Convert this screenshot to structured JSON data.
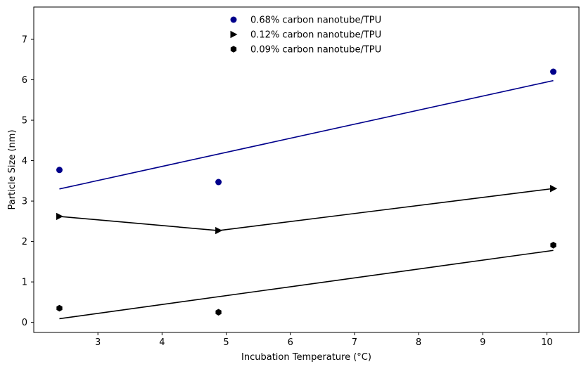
{
  "chart_data": {
    "type": "scatter",
    "title": "",
    "xlabel": "Incubation Temperature (°C)",
    "ylabel": "Particle Size (nm)",
    "xlim": [
      2.0,
      10.5
    ],
    "ylim": [
      -0.25,
      7.8
    ],
    "xticks": [
      3,
      4,
      5,
      6,
      7,
      8,
      9,
      10
    ],
    "yticks": [
      0,
      1,
      2,
      3,
      4,
      5,
      6,
      7
    ],
    "grid": false,
    "legend_position": "top-center",
    "series": [
      {
        "name": "0.68% carbon nanotube/TPU",
        "marker": "circle",
        "color": "#00008b",
        "x": [
          2.4,
          4.88,
          10.1
        ],
        "y": [
          3.77,
          3.47,
          6.2
        ],
        "fit_line": {
          "x": [
            2.4,
            10.1
          ],
          "y": [
            3.3,
            5.98
          ]
        }
      },
      {
        "name": "0.12% carbon nanotube/TPU",
        "marker": "triangle-right",
        "color": "#000000",
        "x": [
          2.4,
          4.88,
          10.1
        ],
        "y": [
          2.62,
          2.27,
          3.31
        ],
        "fit_line": {
          "x": [
            2.4,
            4.88,
            10.1
          ],
          "y": [
            2.62,
            2.27,
            3.31
          ]
        }
      },
      {
        "name": "0.09% carbon nanotube/TPU",
        "marker": "hexagon",
        "color": "#000000",
        "x": [
          2.4,
          4.88,
          10.1
        ],
        "y": [
          0.35,
          0.25,
          1.91
        ],
        "fit_line": {
          "x": [
            2.4,
            10.1
          ],
          "y": [
            0.09,
            1.78
          ]
        }
      }
    ]
  }
}
